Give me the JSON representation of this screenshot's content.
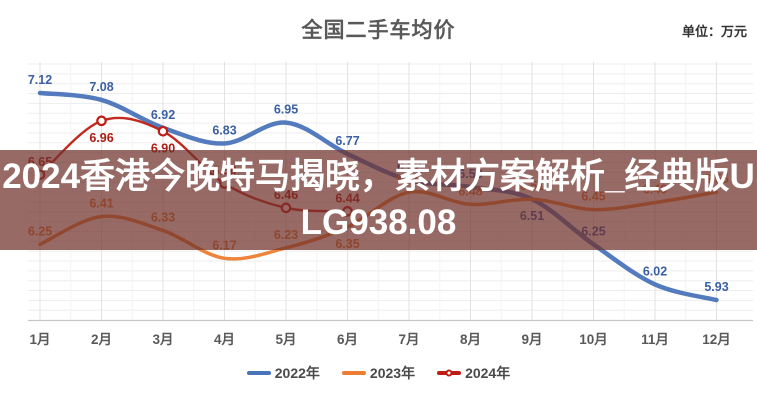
{
  "header": {
    "title": "全国二手车均价",
    "unit": "单位：万元"
  },
  "banner": {
    "line1": "2024香港今晚特马揭晓，素材方案解析_经典版U",
    "line2": "LG938.08",
    "background": "#6f312b",
    "text_color": "#ffffff"
  },
  "chart_data": {
    "type": "line",
    "title": "全国二手车均价",
    "unit": "万元",
    "categories": [
      "1月",
      "2月",
      "3月",
      "4月",
      "5月",
      "6月",
      "7月",
      "8月",
      "9月",
      "10月",
      "11月",
      "12月"
    ],
    "ylim": [
      5.8,
      7.3
    ],
    "grid": true,
    "legend_position": "bottom",
    "series": [
      {
        "name": "2022年",
        "color": "#4a74b9",
        "label_color": "#3a5fa5",
        "markers": false,
        "values": [
          7.12,
          7.08,
          6.92,
          6.83,
          6.95,
          6.77,
          6.62,
          6.58,
          6.51,
          6.25,
          6.02,
          5.93
        ],
        "labels_below": [
          8
        ]
      },
      {
        "name": "2023年",
        "color": "#ed7d31",
        "label_color": "#dd7d36",
        "markers": false,
        "values": [
          6.25,
          6.41,
          6.33,
          6.17,
          6.23,
          6.35,
          6.55,
          6.48,
          6.51,
          6.45,
          6.49,
          6.55
        ],
        "labels_below": [
          5
        ]
      },
      {
        "name": "2024年",
        "color": "#bf1d13",
        "label_color": "#b01910",
        "markers": true,
        "values": [
          6.65,
          6.96,
          6.9,
          6.6,
          6.46,
          6.44
        ],
        "labels_below": [
          1,
          2
        ]
      }
    ]
  }
}
